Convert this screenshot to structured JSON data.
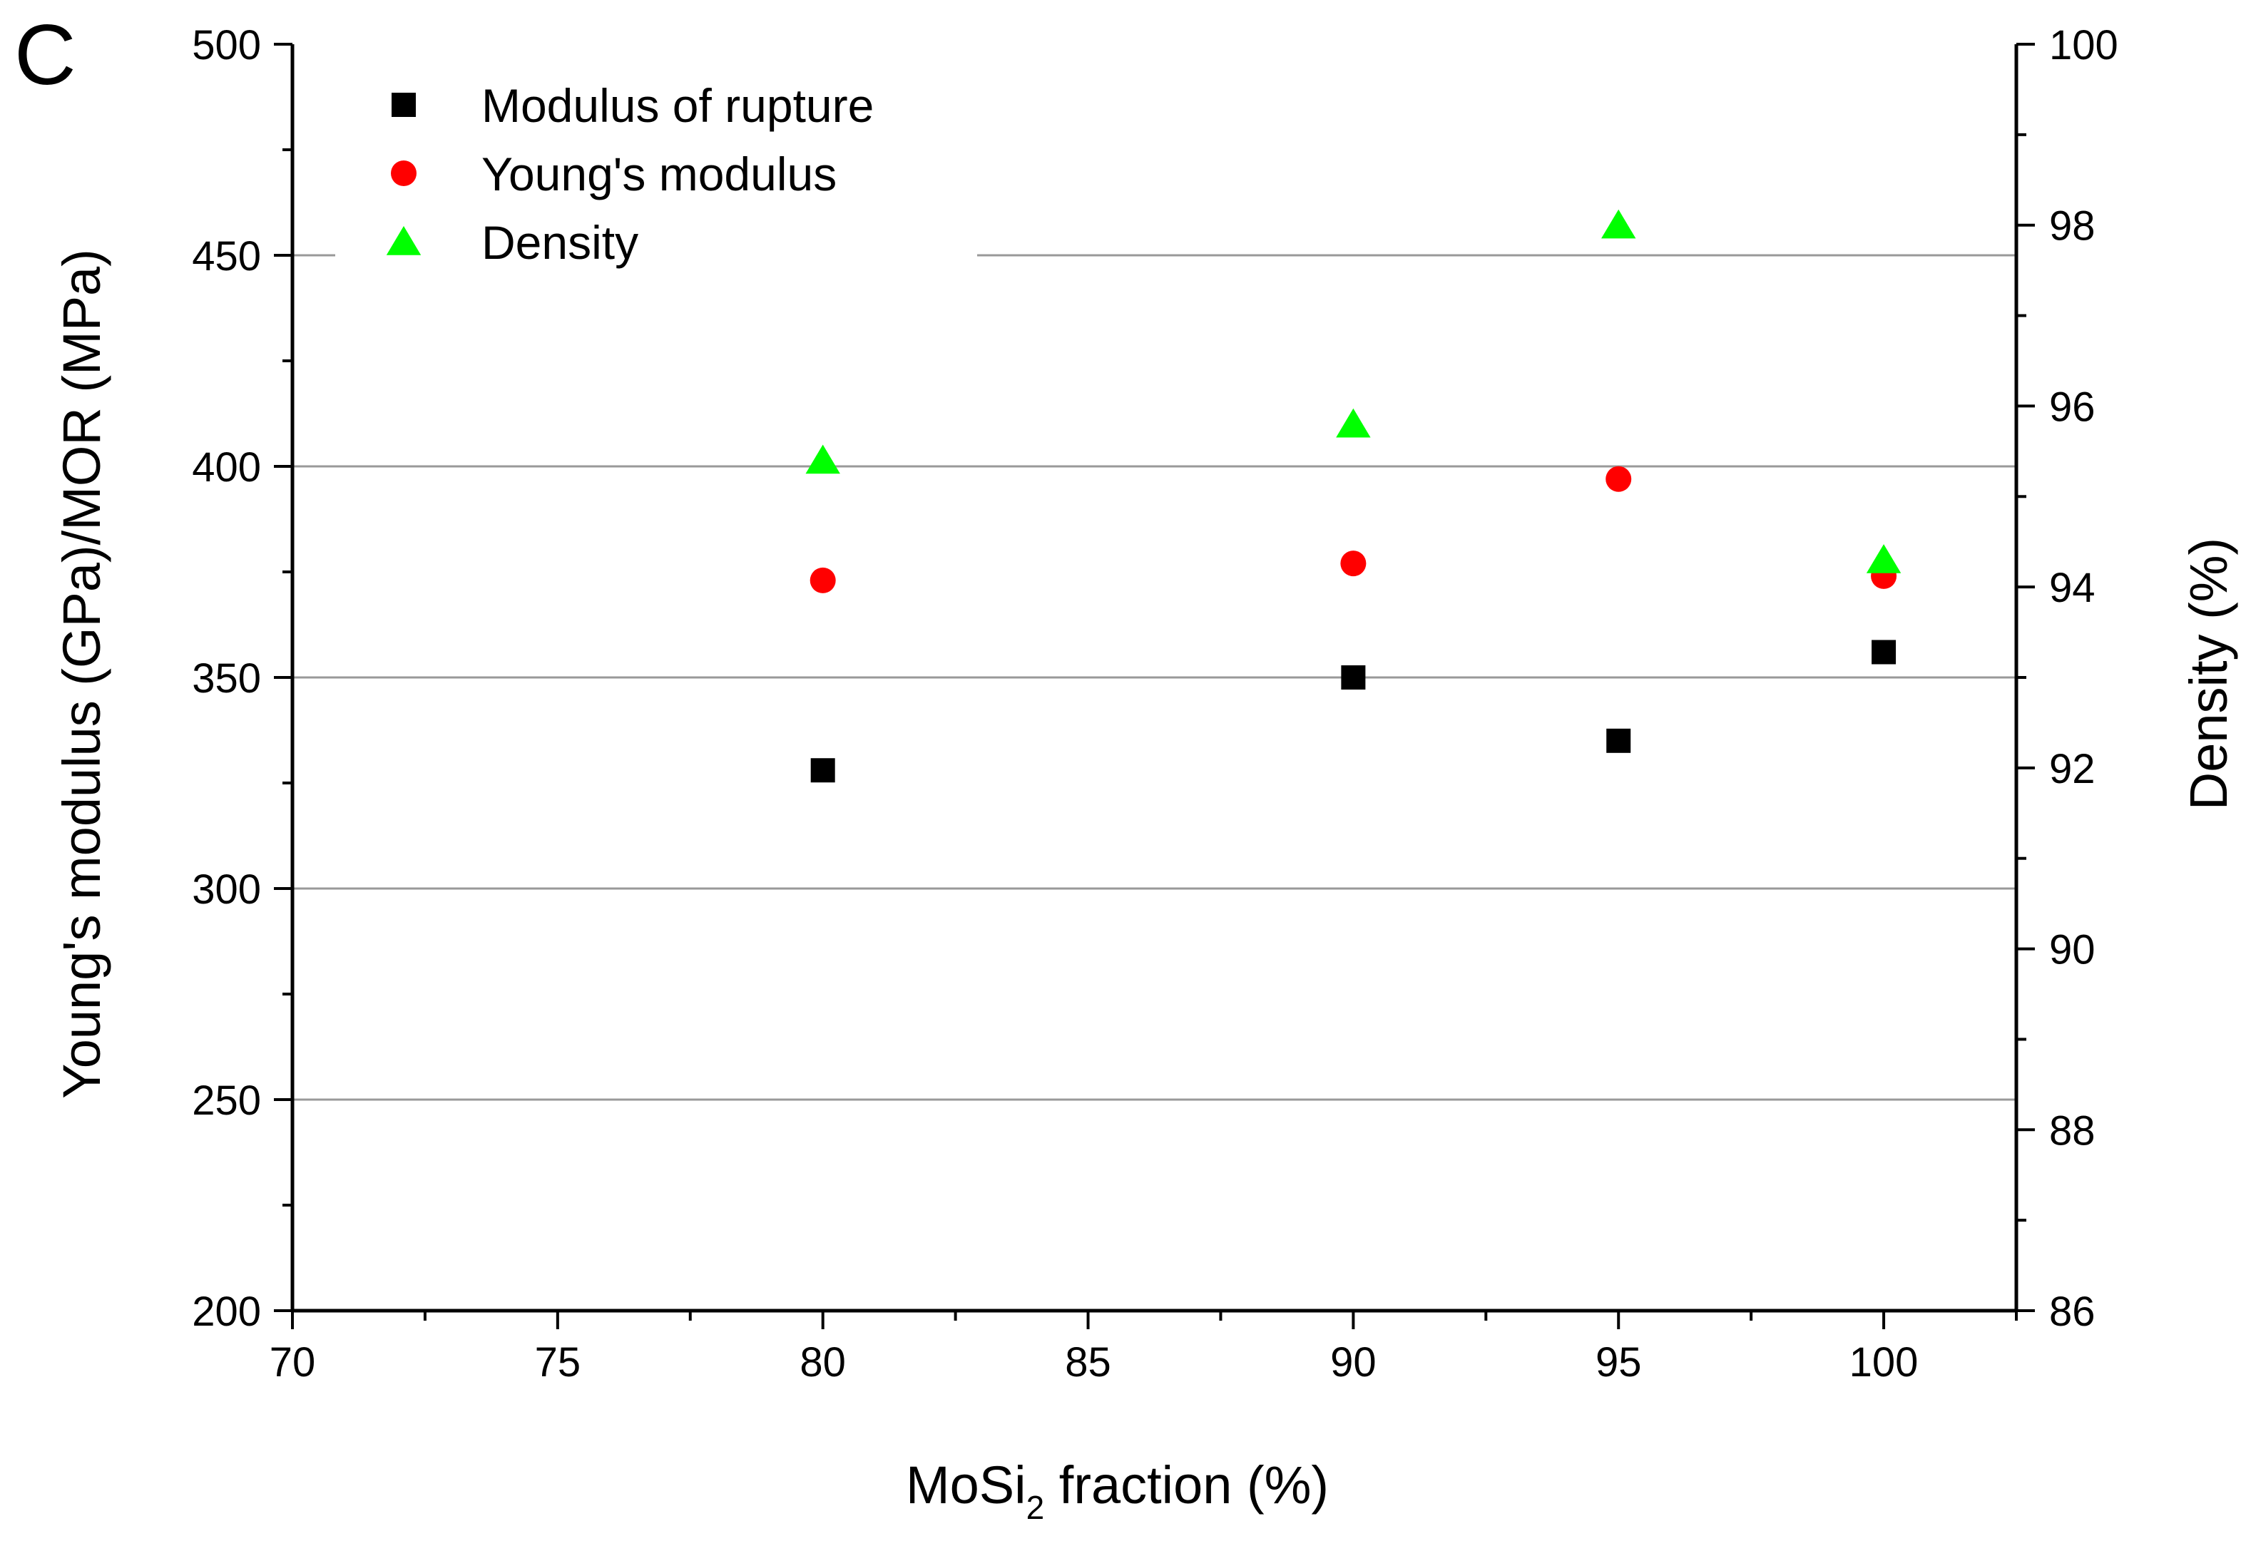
{
  "panel_label": "C",
  "chart_data": {
    "type": "scatter",
    "xlabel": {
      "main": "MoSi",
      "sub": "2",
      "rest": " fraction (%)"
    },
    "ylabel": "Young's modulus (GPa)/MOR (MPa)",
    "y2label": "Density (%)",
    "xlim": [
      70,
      102.5
    ],
    "ylim": [
      200,
      500
    ],
    "y2lim": [
      86,
      100
    ],
    "x_ticks": [
      70,
      75,
      80,
      85,
      90,
      95,
      100
    ],
    "y_ticks": [
      200,
      250,
      300,
      350,
      400,
      450,
      500
    ],
    "y2_ticks": [
      86,
      88,
      90,
      92,
      94,
      96,
      98,
      100
    ],
    "gridlines_y": [
      250,
      300,
      350,
      400,
      450
    ],
    "legend_position": "top-left",
    "series": [
      {
        "name": "Modulus of rupture",
        "marker": "square",
        "color": "#000000",
        "axis": "left",
        "x": [
          80,
          90,
          95,
          100
        ],
        "y": [
          328,
          350,
          335,
          356
        ]
      },
      {
        "name": "Young's modulus",
        "marker": "circle",
        "color": "#ff0000",
        "axis": "left",
        "x": [
          80,
          90,
          95,
          100
        ],
        "y": [
          373,
          377,
          397,
          374
        ]
      },
      {
        "name": "Density",
        "marker": "triangle",
        "color": "#00ff00",
        "axis": "right",
        "x": [
          80,
          90,
          95,
          100
        ],
        "y": [
          95.4,
          95.8,
          98.0,
          94.3
        ]
      }
    ]
  }
}
